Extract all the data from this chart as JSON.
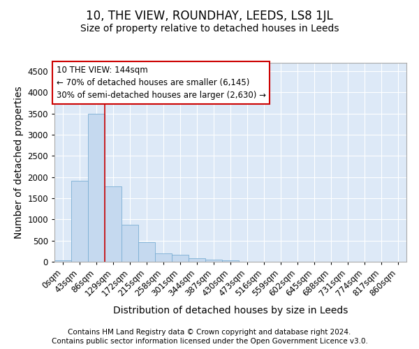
{
  "title": "10, THE VIEW, ROUNDHAY, LEEDS, LS8 1JL",
  "subtitle": "Size of property relative to detached houses in Leeds",
  "xlabel": "Distribution of detached houses by size in Leeds",
  "ylabel": "Number of detached properties",
  "footer_line1": "Contains HM Land Registry data © Crown copyright and database right 2024.",
  "footer_line2": "Contains public sector information licensed under the Open Government Licence v3.0.",
  "categories": [
    "0sqm",
    "43sqm",
    "86sqm",
    "129sqm",
    "172sqm",
    "215sqm",
    "258sqm",
    "301sqm",
    "344sqm",
    "387sqm",
    "430sqm",
    "473sqm",
    "516sqm",
    "559sqm",
    "602sqm",
    "645sqm",
    "688sqm",
    "731sqm",
    "774sqm",
    "817sqm",
    "860sqm"
  ],
  "values": [
    40,
    1920,
    3490,
    1780,
    870,
    460,
    195,
    170,
    90,
    55,
    40,
    0,
    0,
    0,
    0,
    0,
    0,
    0,
    0,
    0,
    0
  ],
  "bar_color": "#c5d9ef",
  "bar_edge_color": "#7aaed4",
  "vline_x": 2.5,
  "vline_color": "#cc0000",
  "annotation_text": "10 THE VIEW: 144sqm\n← 70% of detached houses are smaller (6,145)\n30% of semi-detached houses are larger (2,630) →",
  "annotation_box_color": "#ffffff",
  "annotation_box_edge": "#cc0000",
  "ylim": [
    0,
    4700
  ],
  "yticks": [
    0,
    500,
    1000,
    1500,
    2000,
    2500,
    3000,
    3500,
    4000,
    4500
  ],
  "fig_bg_color": "#ffffff",
  "plot_bg_color": "#dde9f7",
  "title_fontsize": 12,
  "subtitle_fontsize": 10,
  "axis_label_fontsize": 10,
  "tick_fontsize": 8.5,
  "footer_fontsize": 7.5
}
